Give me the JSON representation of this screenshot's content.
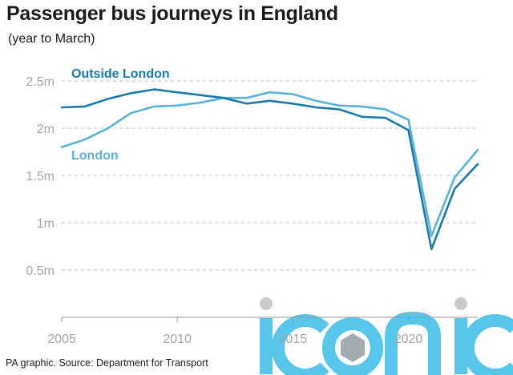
{
  "title": "Passenger bus journeys in England",
  "subtitle": "(year to March)",
  "source": "PA graphic. Source: Department for Transport",
  "watermark": {
    "text": "iconic",
    "color": "#4ec3ea"
  },
  "chart_data": {
    "type": "line",
    "x": [
      2005,
      2006,
      2007,
      2008,
      2009,
      2010,
      2011,
      2012,
      2013,
      2014,
      2015,
      2016,
      2017,
      2018,
      2019,
      2020,
      2021,
      2022,
      2023
    ],
    "xlim": [
      2005,
      2023
    ],
    "x_ticks": [
      2005,
      2010,
      2015,
      2020
    ],
    "x_tick_labels": [
      "2005",
      "2010",
      "2015",
      "2020"
    ],
    "ylim": [
      0,
      2.5
    ],
    "y_ticks": [
      0.5,
      1,
      1.5,
      2,
      2.5
    ],
    "y_tick_labels": [
      "0.5m",
      "1m",
      "1.5m",
      "2m",
      "2.5m"
    ],
    "grid": "horizontal dashed",
    "series": [
      {
        "name": "Outside London",
        "color": "#1a7bab",
        "values": [
          2.22,
          2.23,
          2.31,
          2.37,
          2.41,
          2.38,
          2.35,
          2.32,
          2.26,
          2.29,
          2.26,
          2.22,
          2.2,
          2.12,
          2.11,
          1.98,
          0.72,
          1.36,
          1.62
        ]
      },
      {
        "name": "London",
        "color": "#5ab3d9",
        "values": [
          1.8,
          1.88,
          2.0,
          2.16,
          2.23,
          2.24,
          2.27,
          2.32,
          2.32,
          2.38,
          2.36,
          2.29,
          2.24,
          2.23,
          2.2,
          2.09,
          0.86,
          1.48,
          1.77
        ]
      }
    ],
    "annotations": [
      "Outside London",
      "London"
    ]
  }
}
